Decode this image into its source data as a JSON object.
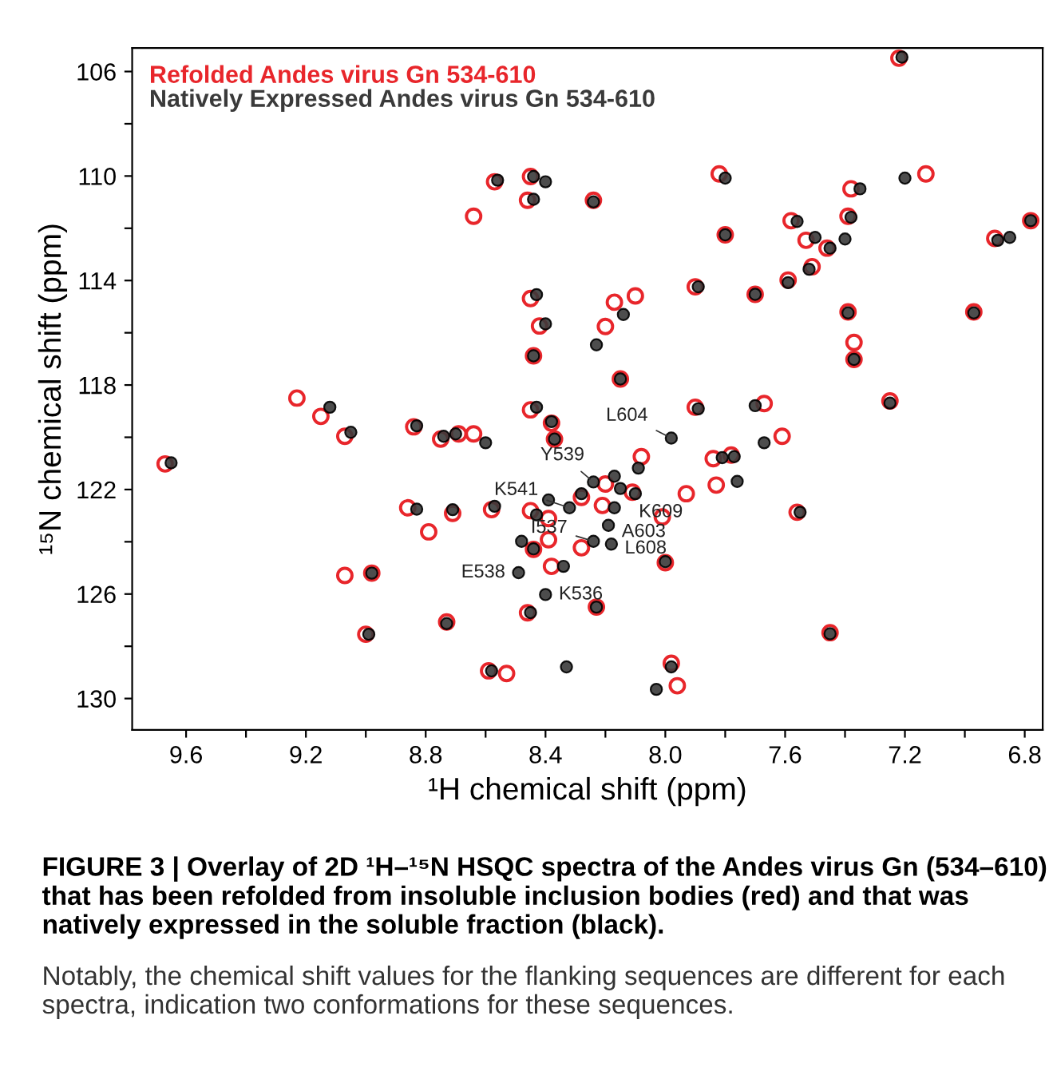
{
  "chart_data": {
    "type": "scatter",
    "xlabel": "¹H chemical shift (ppm)",
    "ylabel": "¹⁵N chemical shift (ppm)",
    "xlim": [
      9.78,
      6.74
    ],
    "ylim": [
      131.2,
      105.1
    ],
    "xticks": [
      9.6,
      {
        "value": 9.4,
        "label": null
      },
      9.2,
      {
        "value": 9.0,
        "label": null
      },
      8.8,
      {
        "value": 8.6,
        "label": null
      },
      8.4,
      {
        "value": 8.2,
        "label": null
      },
      {
        "value": 8.0,
        "label": "8.0"
      },
      {
        "value": 7.8,
        "label": null
      },
      7.6,
      {
        "value": 7.4,
        "label": null
      },
      7.2,
      {
        "value": 7.0,
        "label": null
      },
      6.8
    ],
    "yticks": [
      106,
      {
        "value": 108,
        "label": null
      },
      110,
      {
        "value": 112,
        "label": null
      },
      114,
      {
        "value": 116,
        "label": null
      },
      118,
      {
        "value": 120,
        "label": null
      },
      122,
      {
        "value": 124,
        "label": null
      },
      126,
      {
        "value": 128,
        "label": null
      },
      130
    ],
    "grid": false,
    "legend": "top left",
    "marker": "circle",
    "series": [
      {
        "name": "Refolded Andes virus Gn 534-610",
        "color": "#e8262b",
        "x": [
          7.22,
          7.82,
          8.24,
          7.13,
          7.38,
          7.58,
          7.39,
          7.53,
          7.46,
          7.51,
          7.8,
          6.78,
          6.9,
          7.9,
          7.7,
          7.59,
          7.39,
          6.97,
          7.37,
          7.37,
          8.1,
          8.17,
          8.2,
          8.15,
          8.57,
          8.45,
          8.46,
          8.64,
          8.45,
          8.42,
          8.44,
          9.67,
          9.23,
          9.15,
          9.07,
          8.84,
          8.75,
          8.69,
          8.64,
          8.45,
          8.38,
          8.37,
          8.28,
          8.86,
          8.71,
          8.58,
          8.45,
          8.39,
          8.79,
          8.44,
          8.39,
          8.38,
          8.28,
          9.07,
          8.98,
          8.46,
          8.73,
          9.0,
          8.59,
          8.53,
          7.9,
          7.67,
          7.25,
          7.61,
          8.08,
          7.84,
          7.78,
          7.83,
          7.93,
          8.2,
          8.11,
          8.21,
          8.01,
          8.0,
          7.56,
          8.23,
          7.45,
          7.98,
          7.96
        ],
        "values": [
          105.49,
          109.92,
          110.93,
          109.92,
          110.49,
          111.71,
          111.54,
          112.46,
          112.76,
          113.47,
          112.25,
          111.71,
          112.39,
          114.24,
          114.53,
          113.98,
          115.2,
          115.2,
          116.37,
          117.02,
          114.59,
          114.83,
          115.76,
          117.77,
          110.22,
          110.02,
          110.93,
          111.54,
          114.69,
          115.74,
          116.88,
          121.02,
          118.5,
          119.2,
          119.96,
          119.6,
          120.07,
          119.87,
          119.87,
          118.95,
          119.46,
          120.07,
          122.3,
          122.7,
          122.91,
          122.77,
          122.81,
          123.11,
          123.62,
          124.29,
          123.92,
          124.94,
          124.23,
          125.29,
          125.2,
          126.72,
          127.07,
          127.54,
          128.94,
          129.04,
          118.85,
          118.71,
          118.61,
          119.96,
          120.74,
          120.82,
          120.68,
          121.83,
          122.16,
          121.79,
          122.1,
          122.61,
          123.05,
          124.8,
          122.87,
          126.5,
          127.48,
          128.65,
          129.51
        ]
      },
      {
        "name": "Natively Expressed Andes virus Gn 534-610",
        "color": "#3a3a3a",
        "x": [
          7.21,
          7.8,
          8.24,
          7.2,
          7.35,
          7.56,
          7.5,
          7.38,
          7.4,
          7.45,
          7.52,
          7.8,
          6.78,
          6.85,
          6.89,
          7.89,
          7.7,
          7.59,
          7.39,
          6.97,
          7.37,
          8.14,
          8.23,
          8.15,
          8.56,
          8.44,
          8.4,
          8.44,
          8.43,
          8.4,
          8.44,
          9.65,
          9.12,
          9.05,
          8.83,
          8.74,
          8.7,
          8.6,
          8.43,
          8.38,
          8.37,
          8.28,
          8.32,
          8.39,
          8.83,
          8.71,
          8.57,
          8.43,
          8.48,
          8.44,
          8.34,
          8.49,
          8.4,
          8.98,
          8.45,
          8.73,
          8.99,
          8.58,
          8.33,
          7.89,
          7.7,
          7.25,
          7.98,
          7.67,
          8.09,
          7.81,
          7.77,
          7.76,
          8.24,
          8.17,
          8.15,
          8.1,
          8.17,
          8.19,
          8.24,
          8.18,
          8.0,
          7.55,
          8.23,
          7.45,
          7.98,
          8.03
        ],
        "values": [
          105.45,
          110.08,
          110.99,
          110.08,
          110.49,
          111.74,
          112.35,
          111.58,
          112.41,
          112.76,
          113.57,
          112.25,
          111.71,
          112.35,
          112.46,
          114.24,
          114.53,
          114.08,
          115.24,
          115.24,
          117.02,
          115.3,
          116.46,
          117.77,
          110.16,
          110.02,
          110.22,
          110.89,
          114.54,
          115.66,
          116.88,
          120.98,
          118.85,
          119.81,
          119.56,
          119.96,
          119.87,
          120.21,
          118.85,
          119.4,
          120.07,
          122.16,
          122.7,
          122.4,
          122.75,
          122.77,
          122.64,
          122.97,
          123.98,
          124.27,
          124.94,
          125.18,
          126.02,
          125.2,
          126.71,
          127.13,
          127.54,
          128.94,
          128.79,
          118.91,
          118.79,
          118.69,
          120.03,
          120.21,
          121.18,
          120.78,
          120.74,
          121.69,
          121.71,
          121.49,
          121.96,
          122.16,
          122.7,
          123.37,
          123.98,
          124.09,
          124.76,
          122.87,
          126.5,
          127.52,
          128.79,
          129.65
        ]
      }
    ],
    "annotations": [
      {
        "text": "L604",
        "x": 7.98,
        "y": 120.03
      },
      {
        "text": "Y539",
        "x": 8.24,
        "y": 121.71
      },
      {
        "text": "K541",
        "x": 8.32,
        "y": 122.7
      },
      {
        "text": "K609",
        "x": 8.17,
        "y": 122.7
      },
      {
        "text": "A603",
        "x": 8.19,
        "y": 123.37
      },
      {
        "text": "I537",
        "x": 8.24,
        "y": 123.98
      },
      {
        "text": "L608",
        "x": 8.18,
        "y": 124.09
      },
      {
        "text": "E538",
        "x": 8.49,
        "y": 125.18
      },
      {
        "text": "K536",
        "x": 8.4,
        "y": 126.02
      },
      "FIGURE 3 | Overlay of 2D ¹H–¹⁵N HSQC spectra of the Andes virus Gn (534–610) that has been refolded from insoluble inclusion bodies (red) and that was natively expressed in the soluble fraction (black).",
      "Notably, the chemical shift values for the flanking sequences are different for each spectra, indication two conformations for these sequences."
    ]
  }
}
